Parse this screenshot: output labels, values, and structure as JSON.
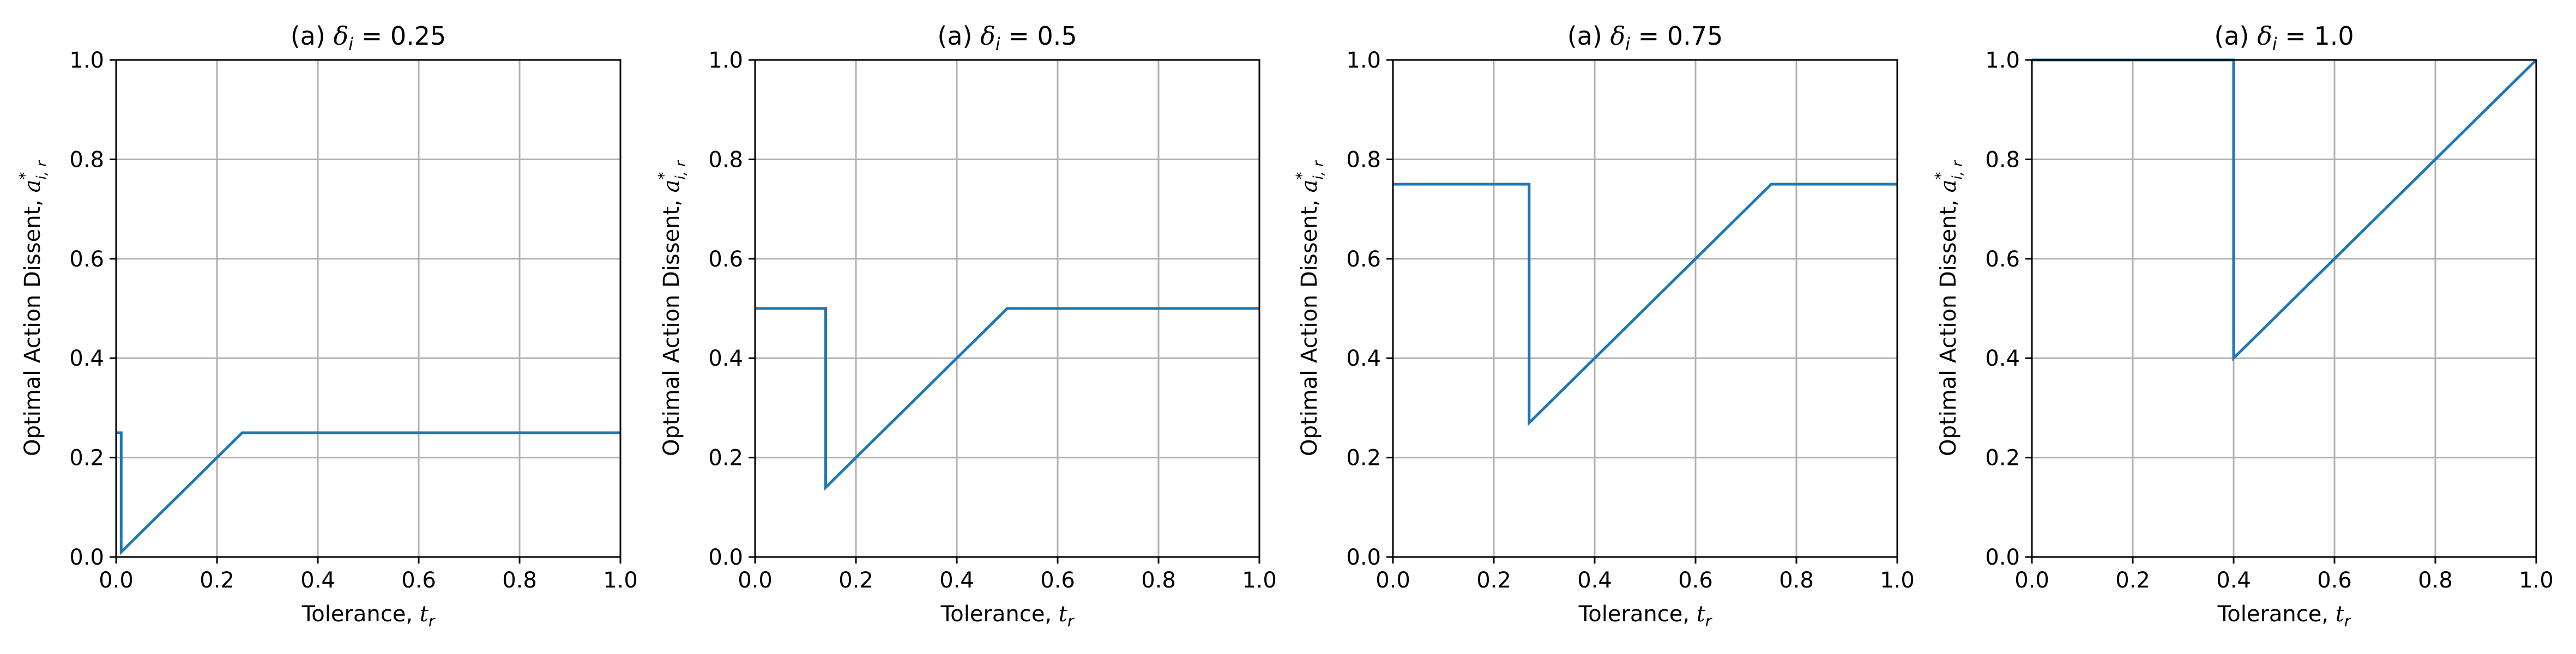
{
  "chart_data": [
    {
      "type": "line",
      "title": "(a) δ_i = 0.25",
      "title_parts": {
        "prefix": "(a) ",
        "symbol": "δ",
        "sub": "i",
        "suffix": " = 0.25"
      },
      "xlabel_parts": {
        "text": "Tolerance, ",
        "symbol": "t",
        "sub": "r"
      },
      "ylabel_parts": {
        "text": "Optimal Action Dissent, ",
        "symbol": "a",
        "sub": "i, r",
        "sup": "*"
      },
      "xlim": [
        0,
        1
      ],
      "ylim": [
        0,
        1
      ],
      "xticks": [
        "0.0",
        "0.2",
        "0.4",
        "0.6",
        "0.8",
        "1.0"
      ],
      "yticks": [
        "0.0",
        "0.2",
        "0.4",
        "0.6",
        "0.8",
        "1.0"
      ],
      "grid": true,
      "color": "#1f77b4",
      "series": [
        {
          "x": [
            0,
            0.01,
            0.01,
            0.25,
            1.0
          ],
          "y": [
            0.25,
            0.25,
            0.01,
            0.25,
            0.25
          ]
        }
      ]
    },
    {
      "type": "line",
      "title": "(a) δ_i = 0.5",
      "title_parts": {
        "prefix": "(a) ",
        "symbol": "δ",
        "sub": "i",
        "suffix": " = 0.5"
      },
      "xlabel_parts": {
        "text": "Tolerance, ",
        "symbol": "t",
        "sub": "r"
      },
      "ylabel_parts": {
        "text": "Optimal Action Dissent, ",
        "symbol": "a",
        "sub": "i, r",
        "sup": "*"
      },
      "xlim": [
        0,
        1
      ],
      "ylim": [
        0,
        1
      ],
      "xticks": [
        "0.0",
        "0.2",
        "0.4",
        "0.6",
        "0.8",
        "1.0"
      ],
      "yticks": [
        "0.0",
        "0.2",
        "0.4",
        "0.6",
        "0.8",
        "1.0"
      ],
      "grid": true,
      "color": "#1f77b4",
      "series": [
        {
          "x": [
            0,
            0.14,
            0.14,
            0.5,
            1.0
          ],
          "y": [
            0.5,
            0.5,
            0.14,
            0.5,
            0.5
          ]
        }
      ]
    },
    {
      "type": "line",
      "title": "(a) δ_i = 0.75",
      "title_parts": {
        "prefix": "(a) ",
        "symbol": "δ",
        "sub": "i",
        "suffix": " = 0.75"
      },
      "xlabel_parts": {
        "text": "Tolerance, ",
        "symbol": "t",
        "sub": "r"
      },
      "ylabel_parts": {
        "text": "Optimal Action Dissent, ",
        "symbol": "a",
        "sub": "i, r",
        "sup": "*"
      },
      "xlim": [
        0,
        1
      ],
      "ylim": [
        0,
        1
      ],
      "xticks": [
        "0.0",
        "0.2",
        "0.4",
        "0.6",
        "0.8",
        "1.0"
      ],
      "yticks": [
        "0.0",
        "0.2",
        "0.4",
        "0.6",
        "0.8",
        "1.0"
      ],
      "grid": true,
      "color": "#1f77b4",
      "series": [
        {
          "x": [
            0,
            0.27,
            0.27,
            0.75,
            1.0
          ],
          "y": [
            0.75,
            0.75,
            0.27,
            0.75,
            0.75
          ]
        }
      ]
    },
    {
      "type": "line",
      "title": "(a) δ_i = 1.0",
      "title_parts": {
        "prefix": "(a) ",
        "symbol": "δ",
        "sub": "i",
        "suffix": " = 1.0"
      },
      "xlabel_parts": {
        "text": "Tolerance, ",
        "symbol": "t",
        "sub": "r"
      },
      "ylabel_parts": {
        "text": "Optimal Action Dissent, ",
        "symbol": "a",
        "sub": "i, r",
        "sup": "*"
      },
      "xlim": [
        0,
        1
      ],
      "ylim": [
        0,
        1
      ],
      "xticks": [
        "0.0",
        "0.2",
        "0.4",
        "0.6",
        "0.8",
        "1.0"
      ],
      "yticks": [
        "0.0",
        "0.2",
        "0.4",
        "0.6",
        "0.8",
        "1.0"
      ],
      "grid": true,
      "color": "#1f77b4",
      "series": [
        {
          "x": [
            0,
            0.4,
            0.4,
            1.0
          ],
          "y": [
            1.0,
            1.0,
            0.4,
            1.0
          ]
        }
      ]
    }
  ]
}
